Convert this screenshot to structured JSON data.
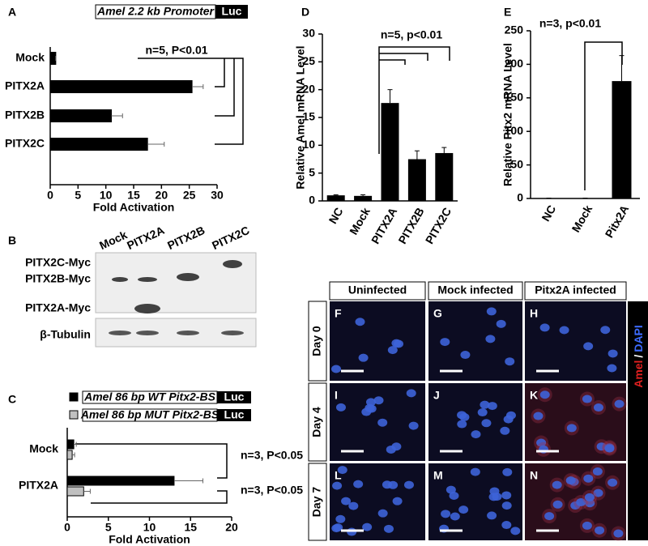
{
  "chart_data": [
    {
      "type": "hbar",
      "panel": "A",
      "construct": {
        "label": "Amel 2.2 kb Promoter",
        "reporter": "Luc"
      },
      "categories": [
        "Mock",
        "PITX2A",
        "PITX2B",
        "PITX2C"
      ],
      "values": [
        1,
        25.5,
        11,
        17.5
      ],
      "errors": [
        0,
        2,
        2,
        3
      ],
      "color": "#000000",
      "xlim": [
        0,
        30
      ],
      "xticks": [
        0,
        5,
        10,
        15,
        20,
        25,
        30
      ],
      "xlabel": "Fold Activation",
      "annotations": [
        "n=5, P<0.01"
      ]
    },
    {
      "type": "hbar",
      "panel": "C",
      "reporter": "Luc",
      "categories": [
        "Mock",
        "PITX2A"
      ],
      "series": [
        {
          "name": "Amel 86 bp WT Pitx2-BS",
          "color": "#000000",
          "values": [
            0.8,
            13
          ],
          "errors": [
            0.3,
            3.5
          ]
        },
        {
          "name": "Amel 86 bp MUT Pitx2-BS",
          "color": "#c0c0c0",
          "values": [
            0.6,
            2
          ],
          "errors": [
            0.3,
            0.8
          ]
        }
      ],
      "xlim": [
        0,
        20
      ],
      "xticks": [
        0,
        5,
        10,
        15,
        20
      ],
      "xlabel": "Fold Activation",
      "annotations": [
        "n=3, P<0.05",
        "n=3, P<0.05"
      ]
    },
    {
      "type": "bar",
      "panel": "D",
      "categories": [
        "NC",
        "Mock",
        "PITX2A",
        "PITX2B",
        "PITX2C"
      ],
      "values": [
        1,
        0.9,
        17.6,
        7.5,
        8.6
      ],
      "errors": [
        0.1,
        0.2,
        2.4,
        1.5,
        1.0
      ],
      "color": "#000000",
      "ylim": [
        0,
        30
      ],
      "yticks": [
        0,
        5,
        10,
        15,
        20,
        25,
        30
      ],
      "ylabel": "Relative Amel mRNA Level",
      "annotations": [
        "n=5, p<0.01"
      ]
    },
    {
      "type": "bar",
      "panel": "E",
      "categories": [
        "NC",
        "Mock",
        "Pitx2A"
      ],
      "values": [
        0.5,
        0.5,
        175
      ],
      "errors": [
        0,
        0,
        38
      ],
      "color": "#000000",
      "ylim": [
        0,
        250
      ],
      "yticks": [
        0,
        50,
        100,
        150,
        200,
        250
      ],
      "ylabel": "Relative Pitx2 mRNA Level",
      "annotations": [
        "n=3, p<0.01"
      ]
    }
  ],
  "blot": {
    "panel": "B",
    "lanes": [
      "Mock",
      "PITX2A",
      "PITX2B",
      "PITX2C"
    ],
    "bands": [
      "PITX2C-Myc",
      "PITX2B-Myc",
      "PITX2A-Myc"
    ],
    "loading_control": "β-Tubulin"
  },
  "microscopy": {
    "columns": [
      "Uninfected",
      "Mock infected",
      "Pitx2A infected"
    ],
    "rows": [
      "Day 0",
      "Day 4",
      "Day 7"
    ],
    "panels": [
      "F",
      "G",
      "H",
      "I",
      "J",
      "K",
      "L",
      "M",
      "N"
    ],
    "stain": {
      "marker": "Amel",
      "separator": "/",
      "counterstain": "DAPI"
    }
  }
}
